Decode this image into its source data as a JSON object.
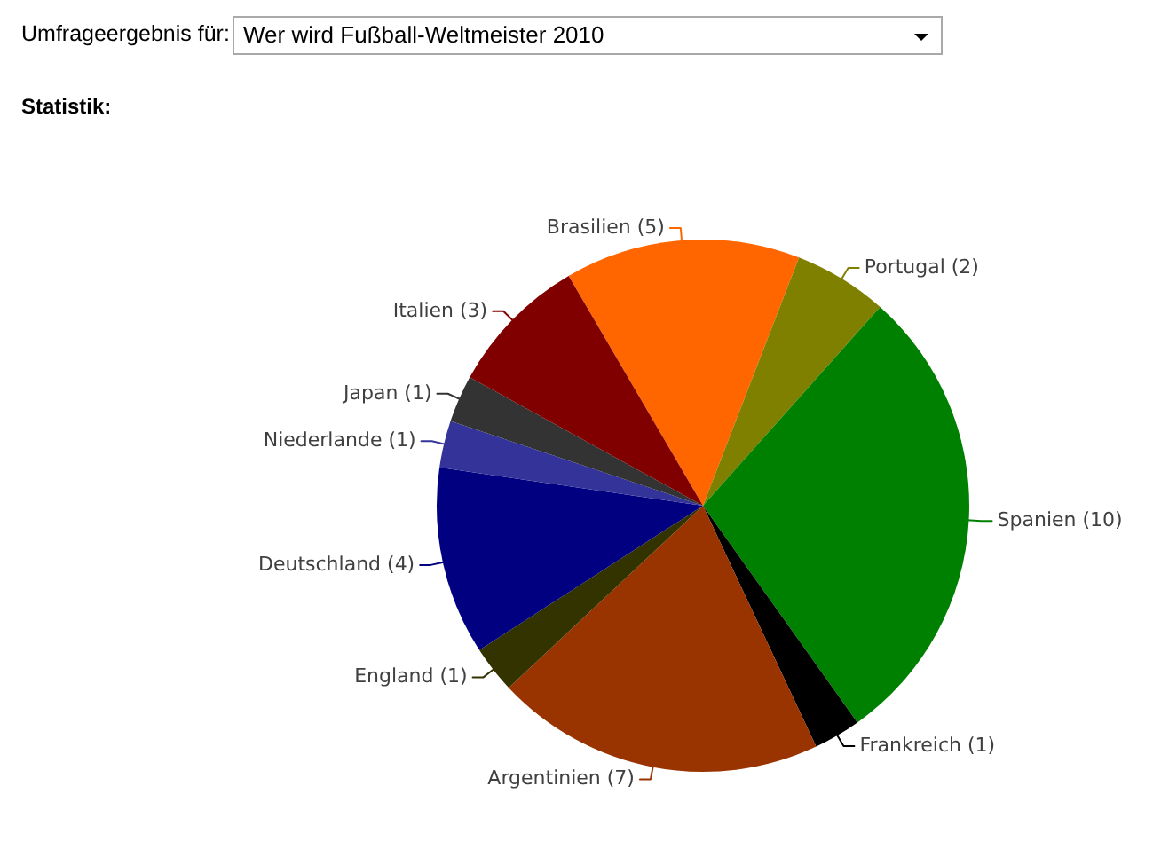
{
  "chart_data": {
    "type": "pie",
    "title": "Wer wird Fußball-Weltmeister 2010",
    "subtitle": "Statistik:",
    "annotations": [
      "Umfrageergebnis für:"
    ],
    "categories": [
      "Brasilien",
      "Portugal",
      "Spanien",
      "Frankreich",
      "Argentinien",
      "England",
      "Deutschland",
      "Niederlande",
      "Japan",
      "Italien"
    ],
    "values": [
      5,
      2,
      10,
      1,
      7,
      1,
      4,
      1,
      1,
      3
    ],
    "value_labels": [
      "(5)",
      "(2)",
      "(10)",
      "(1)",
      "(7)",
      "(1)",
      "(4)",
      "(1)",
      "(1)",
      "(3)"
    ],
    "colors": [
      "#ff6600",
      "#808000",
      "#008000",
      "#000000",
      "#993300",
      "#333300",
      "#000080",
      "#333399",
      "#333333",
      "#800000"
    ]
  }
}
